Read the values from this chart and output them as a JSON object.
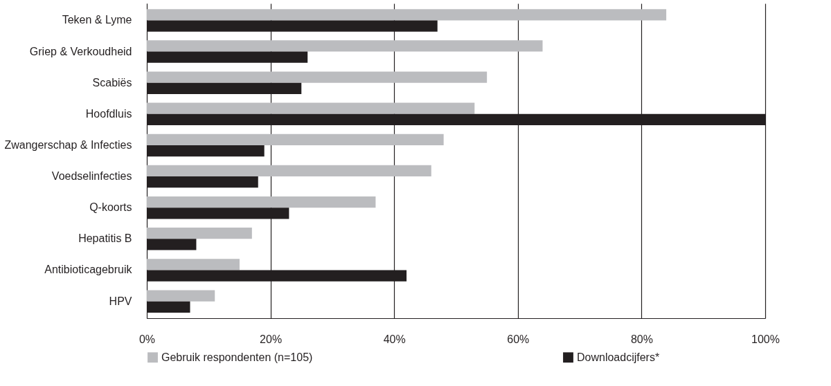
{
  "chart_data": {
    "type": "bar",
    "orientation": "horizontal",
    "categories": [
      "Teken & Lyme",
      "Griep & Verkoudheid",
      "Scabiës",
      "Hoofdluis",
      "Zwangerschap & Infecties",
      "Voedselinfecties",
      "Q-koorts",
      "Hepatitis B",
      "Antibioticagebruik",
      "HPV"
    ],
    "series": [
      {
        "name": "Gebruik respondenten (n=105)",
        "color": "#bbbcbf",
        "values": [
          84,
          64,
          55,
          53,
          48,
          46,
          37,
          17,
          15,
          11
        ]
      },
      {
        "name": "Downloadcijfers*",
        "color": "#231f20",
        "values": [
          47,
          26,
          25,
          100,
          19,
          18,
          23,
          8,
          42,
          7
        ]
      }
    ],
    "xlim": [
      0,
      100
    ],
    "xticks": [
      {
        "value": 0,
        "label": "0%"
      },
      {
        "value": 20,
        "label": "20%"
      },
      {
        "value": 40,
        "label": "40%"
      },
      {
        "value": 60,
        "label": "60%"
      },
      {
        "value": 80,
        "label": "80%"
      },
      {
        "value": 100,
        "label": "100%"
      }
    ],
    "grid": "x",
    "legend": "bottom"
  }
}
